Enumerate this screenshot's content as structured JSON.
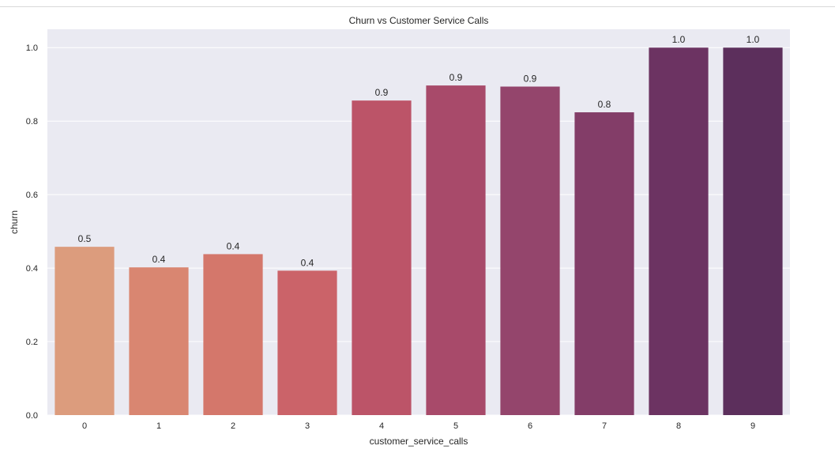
{
  "chart_data": {
    "type": "bar",
    "title": "Churn vs Customer Service Calls",
    "xlabel": "customer_service_calls",
    "ylabel": "churn",
    "ylim": [
      0,
      1.05
    ],
    "yticks": [
      "0.0",
      "0.2",
      "0.4",
      "0.6",
      "0.8",
      "1.0"
    ],
    "categories": [
      "0",
      "1",
      "2",
      "3",
      "4",
      "5",
      "6",
      "7",
      "8",
      "9"
    ],
    "values": [
      0.458,
      0.402,
      0.438,
      0.393,
      0.856,
      0.897,
      0.894,
      0.824,
      1.0,
      1.0
    ],
    "data_labels": [
      "0.5",
      "0.4",
      "0.4",
      "0.4",
      "0.9",
      "0.9",
      "0.9",
      "0.8",
      "1.0",
      "1.0"
    ],
    "colors": [
      "#dc9c7d",
      "#d98671",
      "#d4776b",
      "#cb6369",
      "#bc5468",
      "#a84a6a",
      "#94456c",
      "#833d68",
      "#6c3362",
      "#5c2f5c"
    ],
    "grid": true,
    "background": "#eaeaf2"
  }
}
